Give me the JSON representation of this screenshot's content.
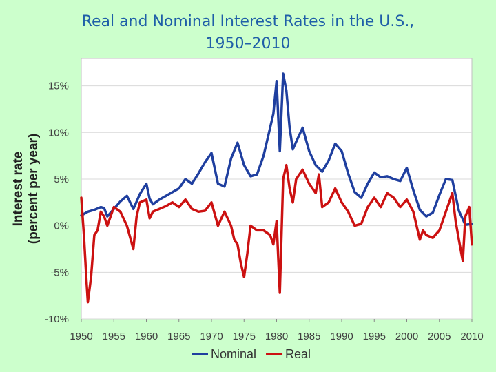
{
  "title": {
    "line1": "Real and Nominal Interest Rates in the U.S.,",
    "line2": "1950–2010"
  },
  "chart_data": {
    "type": "line",
    "title": "Real and Nominal Interest Rates in the U.S., 1950–2010",
    "xlabel": "",
    "ylabel_line1": "Interest rate",
    "ylabel_line2": "(percent per year)",
    "xlim": [
      1950,
      2010
    ],
    "ylim": [
      -10,
      18
    ],
    "x_ticks": [
      {
        "value": 1950,
        "label": "1950"
      },
      {
        "value": 1955,
        "label": "1955"
      },
      {
        "value": 1960,
        "label": "1960"
      },
      {
        "value": 1965,
        "label": "1965"
      },
      {
        "value": 1970,
        "label": "1970"
      },
      {
        "value": 1975,
        "label": "1975"
      },
      {
        "value": 1980,
        "label": "1980"
      },
      {
        "value": 1985,
        "label": "1985"
      },
      {
        "value": 1990,
        "label": "1990"
      },
      {
        "value": 1995,
        "label": "1995"
      },
      {
        "value": 2000,
        "label": "2000"
      },
      {
        "value": 2005,
        "label": "2005"
      },
      {
        "value": 2010,
        "label": "2010"
      }
    ],
    "y_ticks": [
      {
        "value": 15,
        "label": "15%"
      },
      {
        "value": 10,
        "label": "10%"
      },
      {
        "value": 5,
        "label": "5%"
      },
      {
        "value": 0,
        "label": "0%"
      },
      {
        "value": -5,
        "label": "-5%"
      },
      {
        "value": -10,
        "label": "-10%"
      }
    ],
    "grid": true,
    "legend_position": "bottom",
    "series": [
      {
        "name": "Nominal",
        "color": "#1f3f9f",
        "points": [
          [
            1950,
            1.1
          ],
          [
            1951,
            1.5
          ],
          [
            1952,
            1.7
          ],
          [
            1953,
            2.0
          ],
          [
            1953.5,
            1.9
          ],
          [
            1954,
            1.0
          ],
          [
            1955,
            1.8
          ],
          [
            1956,
            2.6
          ],
          [
            1957,
            3.2
          ],
          [
            1958,
            1.8
          ],
          [
            1959,
            3.4
          ],
          [
            1960,
            4.5
          ],
          [
            1960.5,
            2.9
          ],
          [
            1961,
            2.3
          ],
          [
            1962,
            2.8
          ],
          [
            1963,
            3.2
          ],
          [
            1964,
            3.6
          ],
          [
            1965,
            4.0
          ],
          [
            1966,
            5.0
          ],
          [
            1967,
            4.5
          ],
          [
            1968,
            5.6
          ],
          [
            1969,
            6.8
          ],
          [
            1970,
            7.8
          ],
          [
            1971,
            4.5
          ],
          [
            1972,
            4.2
          ],
          [
            1973,
            7.2
          ],
          [
            1974,
            8.9
          ],
          [
            1975,
            6.5
          ],
          [
            1976,
            5.3
          ],
          [
            1977,
            5.5
          ],
          [
            1978,
            7.5
          ],
          [
            1979,
            10.5
          ],
          [
            1979.5,
            12.0
          ],
          [
            1980,
            15.5
          ],
          [
            1980.5,
            8.0
          ],
          [
            1981,
            16.3
          ],
          [
            1981.5,
            14.5
          ],
          [
            1982,
            10.5
          ],
          [
            1982.5,
            8.2
          ],
          [
            1983,
            9.0
          ],
          [
            1984,
            10.5
          ],
          [
            1985,
            8.0
          ],
          [
            1986,
            6.5
          ],
          [
            1987,
            5.8
          ],
          [
            1988,
            7.0
          ],
          [
            1989,
            8.8
          ],
          [
            1990,
            8.0
          ],
          [
            1991,
            5.6
          ],
          [
            1992,
            3.6
          ],
          [
            1993,
            3.0
          ],
          [
            1994,
            4.5
          ],
          [
            1995,
            5.7
          ],
          [
            1996,
            5.2
          ],
          [
            1997,
            5.3
          ],
          [
            1998,
            5.0
          ],
          [
            1999,
            4.8
          ],
          [
            2000,
            6.2
          ],
          [
            2001,
            3.8
          ],
          [
            2002,
            1.7
          ],
          [
            2003,
            1.0
          ],
          [
            2004,
            1.4
          ],
          [
            2005,
            3.3
          ],
          [
            2006,
            5.0
          ],
          [
            2007,
            4.9
          ],
          [
            2008,
            1.6
          ],
          [
            2009,
            0.1
          ],
          [
            2010,
            0.2
          ]
        ]
      },
      {
        "name": "Real",
        "color": "#cc1111",
        "points": [
          [
            1950,
            3.0
          ],
          [
            1950.4,
            -1.0
          ],
          [
            1950.8,
            -6.0
          ],
          [
            1951,
            -8.2
          ],
          [
            1951.5,
            -5.5
          ],
          [
            1952,
            -1.0
          ],
          [
            1952.5,
            -0.5
          ],
          [
            1953,
            1.5
          ],
          [
            1953.5,
            1.0
          ],
          [
            1954,
            0.0
          ],
          [
            1955,
            2.0
          ],
          [
            1956,
            1.5
          ],
          [
            1957,
            0.0
          ],
          [
            1958,
            -2.5
          ],
          [
            1958.5,
            1.0
          ],
          [
            1959,
            2.5
          ],
          [
            1960,
            2.8
          ],
          [
            1960.5,
            0.8
          ],
          [
            1961,
            1.5
          ],
          [
            1962,
            1.8
          ],
          [
            1963,
            2.1
          ],
          [
            1964,
            2.5
          ],
          [
            1965,
            2.0
          ],
          [
            1966,
            2.8
          ],
          [
            1967,
            1.8
          ],
          [
            1968,
            1.5
          ],
          [
            1969,
            1.6
          ],
          [
            1970,
            2.5
          ],
          [
            1971,
            0.0
          ],
          [
            1972,
            1.5
          ],
          [
            1973,
            0.0
          ],
          [
            1973.5,
            -1.5
          ],
          [
            1974,
            -2.0
          ],
          [
            1974.5,
            -4.0
          ],
          [
            1975,
            -5.5
          ],
          [
            1975.5,
            -3.0
          ],
          [
            1976,
            0.0
          ],
          [
            1977,
            -0.5
          ],
          [
            1978,
            -0.5
          ],
          [
            1979,
            -1.0
          ],
          [
            1979.5,
            -2.0
          ],
          [
            1980,
            0.5
          ],
          [
            1980.5,
            -7.2
          ],
          [
            1981,
            5.0
          ],
          [
            1981.5,
            6.5
          ],
          [
            1982,
            4.0
          ],
          [
            1982.5,
            2.5
          ],
          [
            1983,
            5.0
          ],
          [
            1984,
            6.0
          ],
          [
            1985,
            4.5
          ],
          [
            1986,
            3.5
          ],
          [
            1986.5,
            5.5
          ],
          [
            1987,
            2.0
          ],
          [
            1988,
            2.5
          ],
          [
            1989,
            4.0
          ],
          [
            1990,
            2.5
          ],
          [
            1991,
            1.5
          ],
          [
            1992,
            0.0
          ],
          [
            1993,
            0.2
          ],
          [
            1994,
            2.0
          ],
          [
            1995,
            3.0
          ],
          [
            1996,
            2.0
          ],
          [
            1997,
            3.5
          ],
          [
            1998,
            3.0
          ],
          [
            1999,
            2.0
          ],
          [
            2000,
            2.8
          ],
          [
            2001,
            1.5
          ],
          [
            2002,
            -1.5
          ],
          [
            2002.5,
            -0.5
          ],
          [
            2003,
            -1.0
          ],
          [
            2004,
            -1.3
          ],
          [
            2005,
            -0.5
          ],
          [
            2006,
            1.5
          ],
          [
            2007,
            3.5
          ],
          [
            2007.5,
            0.5
          ],
          [
            2008,
            -1.5
          ],
          [
            2008.6,
            -3.8
          ],
          [
            2009,
            1.0
          ],
          [
            2009.6,
            2.0
          ],
          [
            2010,
            -2.0
          ]
        ]
      }
    ]
  }
}
